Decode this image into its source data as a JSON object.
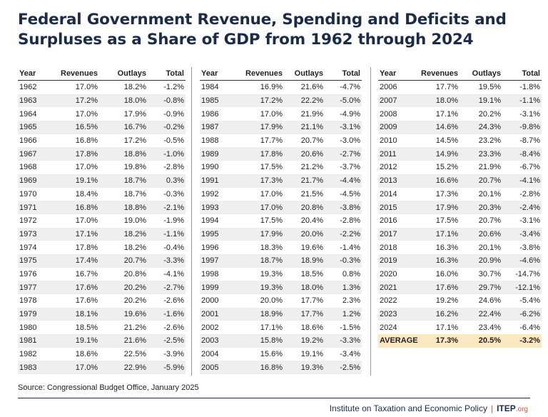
{
  "title_lines": [
    "Federal Government Revenue, Spending and Deficits and",
    "Surpluses as a Share of GDP from 1962 through 2024"
  ],
  "tables": [
    {
      "header": [
        "Year",
        "Revenues",
        "Outlays",
        "Total"
      ],
      "rows": [
        [
          "1962",
          "17.0%",
          "18.2%",
          "-1.2%"
        ],
        [
          "1963",
          "17.2%",
          "18.0%",
          "-0.8%"
        ],
        [
          "1964",
          "17.0%",
          "17.9%",
          "-0.9%"
        ],
        [
          "1965",
          "16.5%",
          "16.7%",
          "-0.2%"
        ],
        [
          "1966",
          "16.8%",
          "17.2%",
          "-0.5%"
        ],
        [
          "1967",
          "17.8%",
          "18.8%",
          "-1.0%"
        ],
        [
          "1968",
          "17.0%",
          "19.8%",
          "-2.8%"
        ],
        [
          "1969",
          "19.1%",
          "18.7%",
          "0.3%"
        ],
        [
          "1970",
          "18.4%",
          "18.7%",
          "-0.3%"
        ],
        [
          "1971",
          "16.8%",
          "18.8%",
          "-2.1%"
        ],
        [
          "1972",
          "17.0%",
          "19.0%",
          "-1.9%"
        ],
        [
          "1973",
          "17.1%",
          "18.2%",
          "-1.1%"
        ],
        [
          "1974",
          "17.8%",
          "18.2%",
          "-0.4%"
        ],
        [
          "1975",
          "17.4%",
          "20.7%",
          "-3.3%"
        ],
        [
          "1976",
          "16.7%",
          "20.8%",
          "-4.1%"
        ],
        [
          "1977",
          "17.6%",
          "20.2%",
          "-2.7%"
        ],
        [
          "1978",
          "17.6%",
          "20.2%",
          "-2.6%"
        ],
        [
          "1979",
          "18.1%",
          "19.6%",
          "-1.6%"
        ],
        [
          "1980",
          "18.5%",
          "21.2%",
          "-2.6%"
        ],
        [
          "1981",
          "19.1%",
          "21.6%",
          "-2.5%"
        ],
        [
          "1982",
          "18.6%",
          "22.5%",
          "-3.9%"
        ],
        [
          "1983",
          "17.0%",
          "22.9%",
          "-5.9%"
        ]
      ]
    },
    {
      "header": [
        "Year",
        "Revenues",
        "Outlays",
        "Total"
      ],
      "rows": [
        [
          "1984",
          "16.9%",
          "21.6%",
          "-4.7%"
        ],
        [
          "1985",
          "17.2%",
          "22.2%",
          "-5.0%"
        ],
        [
          "1986",
          "17.0%",
          "21.9%",
          "-4.9%"
        ],
        [
          "1987",
          "17.9%",
          "21.1%",
          "-3.1%"
        ],
        [
          "1988",
          "17.7%",
          "20.7%",
          "-3.0%"
        ],
        [
          "1989",
          "17.8%",
          "20.6%",
          "-2.7%"
        ],
        [
          "1990",
          "17.5%",
          "21.2%",
          "-3.7%"
        ],
        [
          "1991",
          "17.3%",
          "21.7%",
          "-4.4%"
        ],
        [
          "1992",
          "17.0%",
          "21.5%",
          "-4.5%"
        ],
        [
          "1993",
          "17.0%",
          "20.8%",
          "-3.8%"
        ],
        [
          "1994",
          "17.5%",
          "20.4%",
          "-2.8%"
        ],
        [
          "1995",
          "17.9%",
          "20.0%",
          "-2.2%"
        ],
        [
          "1996",
          "18.3%",
          "19.6%",
          "-1.4%"
        ],
        [
          "1997",
          "18.7%",
          "18.9%",
          "-0.3%"
        ],
        [
          "1998",
          "19.3%",
          "18.5%",
          "0.8%"
        ],
        [
          "1999",
          "19.3%",
          "18.0%",
          "1.3%"
        ],
        [
          "2000",
          "20.0%",
          "17.7%",
          "2.3%"
        ],
        [
          "2001",
          "18.9%",
          "17.7%",
          "1.2%"
        ],
        [
          "2002",
          "17.1%",
          "18.6%",
          "-1.5%"
        ],
        [
          "2003",
          "15.8%",
          "19.2%",
          "-3.3%"
        ],
        [
          "2004",
          "15.6%",
          "19.1%",
          "-3.4%"
        ],
        [
          "2005",
          "16.8%",
          "19.3%",
          "-2.5%"
        ]
      ]
    },
    {
      "header": [
        "Year",
        "Revenues",
        "Outlays",
        "Total"
      ],
      "rows": [
        [
          "2006",
          "17.7%",
          "19.5%",
          "-1.8%"
        ],
        [
          "2007",
          "18.0%",
          "19.1%",
          "-1.1%"
        ],
        [
          "2008",
          "17.1%",
          "20.2%",
          "-3.1%"
        ],
        [
          "2009",
          "14.6%",
          "24.3%",
          "-9.8%"
        ],
        [
          "2010",
          "14.5%",
          "23.2%",
          "-8.7%"
        ],
        [
          "2011",
          "14.9%",
          "23.3%",
          "-8.4%"
        ],
        [
          "2012",
          "15.2%",
          "21.9%",
          "-6.7%"
        ],
        [
          "2013",
          "16.6%",
          "20.7%",
          "-4.1%"
        ],
        [
          "2014",
          "17.3%",
          "20.1%",
          "-2.8%"
        ],
        [
          "2015",
          "17.9%",
          "20.3%",
          "-2.4%"
        ],
        [
          "2016",
          "17.5%",
          "20.7%",
          "-3.1%"
        ],
        [
          "2017",
          "17.1%",
          "20.6%",
          "-3.4%"
        ],
        [
          "2018",
          "16.3%",
          "20.1%",
          "-3.8%"
        ],
        [
          "2019",
          "16.3%",
          "20.9%",
          "-4.6%"
        ],
        [
          "2020",
          "16.0%",
          "30.7%",
          "-14.7%"
        ],
        [
          "2021",
          "17.6%",
          "29.7%",
          "-12.1%"
        ],
        [
          "2022",
          "19.2%",
          "24.6%",
          "-5.4%"
        ],
        [
          "2023",
          "16.2%",
          "22.4%",
          "-6.2%"
        ],
        [
          "2024",
          "17.1%",
          "23.4%",
          "-6.4%"
        ]
      ],
      "average_row": [
        "AVERAGE",
        "17.3%",
        "20.5%",
        "-3.2%"
      ]
    }
  ],
  "source": "Source: Congressional Budget Office, January 2025",
  "footer": {
    "org_name": "Institute on Taxation and Economic Policy",
    "logo_main": "ITEP",
    "logo_suffix": ".org"
  }
}
